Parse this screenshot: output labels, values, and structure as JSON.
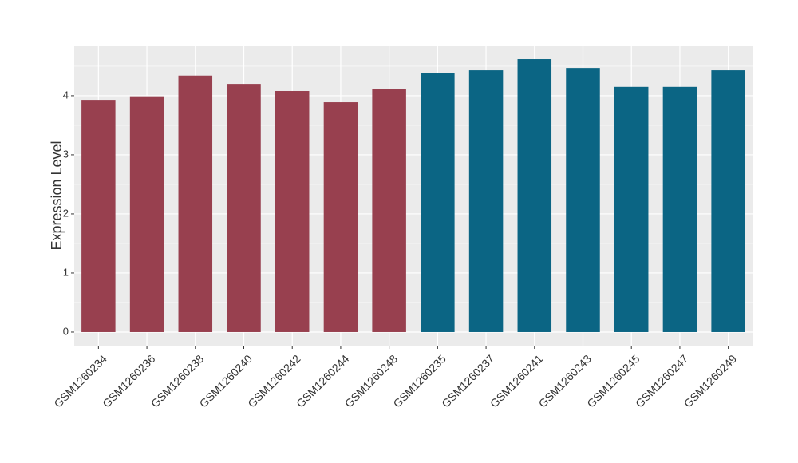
{
  "chart_data": {
    "type": "bar",
    "y_label": "Expression Level",
    "categories": [
      "GSM1260234",
      "GSM1260236",
      "GSM1260238",
      "GSM1260240",
      "GSM1260242",
      "GSM1260244",
      "GSM1260248",
      "GSM1260235",
      "GSM1260237",
      "GSM1260241",
      "GSM1260243",
      "GSM1260245",
      "GSM1260247",
      "GSM1260249"
    ],
    "values": [
      3.93,
      3.99,
      4.34,
      4.2,
      4.08,
      3.89,
      4.12,
      4.38,
      4.43,
      4.62,
      4.47,
      4.15,
      4.15,
      4.43
    ],
    "colors": [
      "#98404f",
      "#98404f",
      "#98404f",
      "#98404f",
      "#98404f",
      "#98404f",
      "#98404f",
      "#0b6584",
      "#0b6584",
      "#0b6584",
      "#0b6584",
      "#0b6584",
      "#0b6584",
      "#0b6584"
    ],
    "ylim": [
      -0.23,
      4.85
    ],
    "yticks": [
      0,
      1,
      2,
      3,
      4
    ],
    "grid": true
  }
}
